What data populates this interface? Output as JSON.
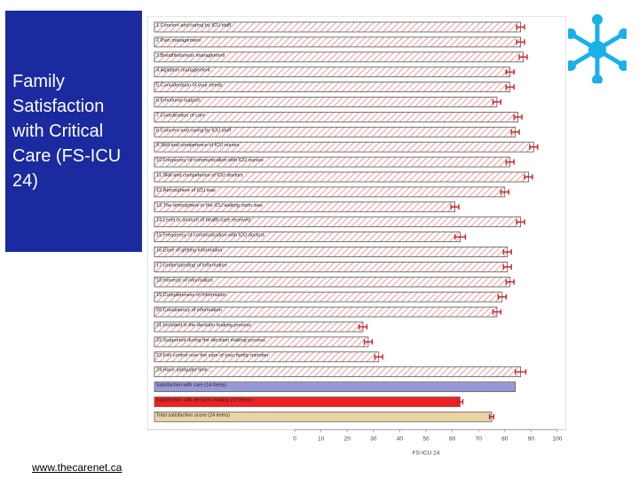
{
  "slide": {
    "title": "Family Satisfaction with Critical Care (FS-ICU 24)",
    "url": "www.thecarenet.ca"
  },
  "colors": {
    "panel": "#1b2a9e",
    "bar_hatch": "#e8a0a0",
    "bar_border": "#555555",
    "error": "#cc2222",
    "summary_care": "#9898d8",
    "summary_decision": "#ee2222",
    "summary_total": "#e8d4a4",
    "logo": "#1ab0e8"
  },
  "chart_data": {
    "type": "bar",
    "orientation": "horizontal",
    "title": "",
    "xlabel": "FS-ICU 24",
    "ylabel": "",
    "xlim": [
      0,
      100
    ],
    "x_ticks": [
      "0",
      "10",
      "20",
      "30",
      "40",
      "50",
      "60",
      "70",
      "80",
      "90",
      "100"
    ],
    "categories": [
      "1.Concern and caring by ICU staff",
      "2.Pain management",
      "3.Breathlessness management",
      "4.Agitation management",
      "5.Consideration of your needs",
      "6.Emotional support",
      "7.Coordination of care",
      "8.Concern and caring by ICU staff",
      "9.Skill and competence of ICU nurses",
      "10.Frequency of communication with ICU nurses",
      "11.Skill and competence of ICU doctors",
      "12.Atmosphere of ICU was",
      "13.The atmosphere in the ICU waiting room was",
      "14.Level or amount of health care received",
      "15.Frequency of communication with ICU doctors",
      "16.Ease of getting information",
      "17.Understanding of information",
      "18.Honesty of information",
      "19.Completeness of information",
      "20.Consistency of information",
      "21.Included in the decision making process",
      "22.Supported during the decision making process",
      "23.Felt control over the care of your family member",
      "24.Have adequate time ...",
      "Satisfaction with care (14 items)",
      "Satisfaction with decision making (10 items)",
      "Total satisfaction score (24 items)"
    ],
    "values": [
      86,
      86,
      87,
      82,
      82,
      77,
      85,
      84,
      91,
      82,
      89,
      80,
      61,
      86,
      63,
      81,
      81,
      82,
      79,
      77,
      26,
      28,
      32,
      86,
      84,
      63,
      75
    ],
    "error_margins": [
      1.5,
      1.5,
      1.5,
      1.5,
      1.5,
      1.5,
      1.5,
      1.5,
      1.5,
      1.5,
      1.5,
      1.5,
      1.5,
      1.5,
      2,
      1.5,
      1.5,
      1.5,
      1.5,
      1.5,
      1.5,
      1.5,
      1.5,
      2,
      0,
      1,
      0.8
    ],
    "bar_styles": [
      "hatch",
      "hatch",
      "hatch",
      "hatch",
      "hatch",
      "hatch",
      "hatch",
      "hatch",
      "hatch",
      "hatch",
      "hatch",
      "hatch",
      "hatch",
      "hatch",
      "hatch",
      "hatch",
      "hatch",
      "hatch",
      "hatch",
      "hatch",
      "hatch",
      "hatch",
      "hatch",
      "hatch",
      "care",
      "decision",
      "total"
    ]
  }
}
